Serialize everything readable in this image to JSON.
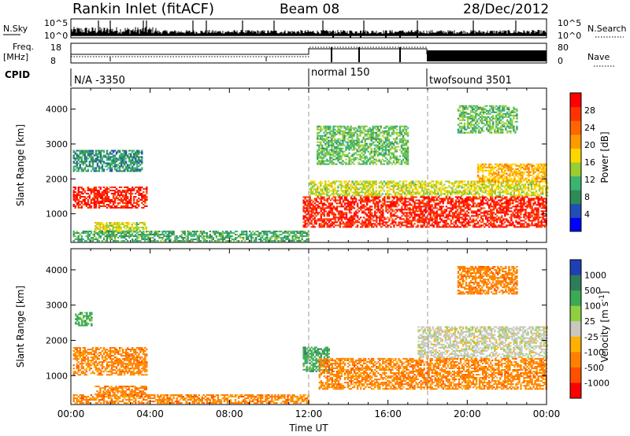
{
  "header": {
    "title": "Rankin Inlet (fitACF)",
    "beam": "Beam 08",
    "date": "28/Dec/2012"
  },
  "top_panels": {
    "nsky_label": "N.Sky",
    "nsky_ticks": [
      "10^5",
      "10^0"
    ],
    "nsearch_label": "N.Search",
    "freq_label": "Freq.",
    "freq_unit": "[MHz]",
    "freq_ticks": [
      "18",
      "8"
    ],
    "nave_ticks": [
      "80",
      "0"
    ],
    "nave_label": "Nave",
    "cpid_label": "CPID",
    "cpid_entries": [
      {
        "label": "N/A -3350",
        "start_hour": 0,
        "end_hour": 12
      },
      {
        "label": "normal 150",
        "start_hour": 12,
        "end_hour": 18
      },
      {
        "label": "twofsound 3501",
        "start_hour": 18,
        "end_hour": 24
      }
    ]
  },
  "colors": {
    "power_scale": [
      "#0000ff",
      "#1f4fb4",
      "#2e8b57",
      "#3cb371",
      "#9acd32",
      "#ffd700",
      "#ff9900",
      "#ff6600",
      "#ff3300",
      "#ff0000"
    ],
    "velocity_scale": [
      "#1f3fb4",
      "#2e7d5a",
      "#3aaa55",
      "#8fd040",
      "#c8c8c0",
      "#ffb000",
      "#ff8000",
      "#ff5000",
      "#ff0000"
    ]
  },
  "chart_data": [
    {
      "type": "heatmap",
      "name": "power",
      "xlabel": "",
      "ylabel": "Slant Range [km]",
      "xlim": [
        "00:00",
        "24:00"
      ],
      "ylim": [
        180,
        4600
      ],
      "yticks": [
        1000,
        2000,
        3000,
        4000
      ],
      "colorbar": {
        "label": "Power [dB]",
        "ticks": [
          4,
          8,
          12,
          16,
          20,
          24,
          28
        ],
        "range": [
          0,
          32
        ]
      },
      "markers_hours": [
        12,
        18
      ],
      "regions": [
        {
          "t0": 0.1,
          "t1": 3.8,
          "r0": 1150,
          "r1": 1750,
          "db": 30
        },
        {
          "t0": 0.1,
          "t1": 3.6,
          "r0": 2200,
          "r1": 2800,
          "db": 8
        },
        {
          "t0": 1.2,
          "t1": 3.8,
          "r0": 450,
          "r1": 750,
          "db": 16
        },
        {
          "t0": 0.1,
          "t1": 12.0,
          "r0": 200,
          "r1": 500,
          "db": 10
        },
        {
          "t0": 11.7,
          "t1": 24.0,
          "r0": 600,
          "r1": 1500,
          "db": 30
        },
        {
          "t0": 12.0,
          "t1": 24.0,
          "r0": 1500,
          "r1": 1950,
          "db": 16
        },
        {
          "t0": 20.5,
          "t1": 24.0,
          "r0": 1900,
          "r1": 2400,
          "db": 20
        },
        {
          "t0": 19.5,
          "t1": 22.5,
          "r0": 3300,
          "r1": 4100,
          "db": 12
        },
        {
          "t0": 12.4,
          "t1": 17.0,
          "r0": 2400,
          "r1": 3500,
          "db": 12
        }
      ]
    },
    {
      "type": "heatmap",
      "name": "velocity",
      "xlabel": "Time UT",
      "ylabel": "Slant Range [km]",
      "xlim": [
        "00:00",
        "24:00"
      ],
      "ylim": [
        180,
        4600
      ],
      "xticks": [
        "00:00",
        "04:00",
        "08:00",
        "12:00",
        "16:00",
        "20:00",
        "00:00"
      ],
      "yticks": [
        1000,
        2000,
        3000,
        4000
      ],
      "colorbar": {
        "label": "Velocity [m s^-1]",
        "ticks": [
          "1000",
          "500",
          "100",
          "25",
          "-25",
          "-100",
          "-500",
          "-1000"
        ]
      },
      "markers_hours": [
        12,
        18
      ],
      "regions": [
        {
          "t0": 0.1,
          "t1": 3.8,
          "r0": 1000,
          "r1": 1800,
          "v": -150
        },
        {
          "t0": 0.2,
          "t1": 1.0,
          "r0": 2400,
          "r1": 2800,
          "v": 80
        },
        {
          "t0": 1.2,
          "t1": 3.8,
          "r0": 400,
          "r1": 700,
          "v": -200
        },
        {
          "t0": 0.1,
          "t1": 12.0,
          "r0": 200,
          "r1": 450,
          "v": -120
        },
        {
          "t0": 11.7,
          "t1": 13.0,
          "r0": 1100,
          "r1": 1800,
          "v": 200
        },
        {
          "t0": 12.5,
          "t1": 24.0,
          "r0": 600,
          "r1": 1500,
          "v": -200
        },
        {
          "t0": 17.5,
          "t1": 24.0,
          "r0": 1500,
          "r1": 2400,
          "v": 0
        },
        {
          "t0": 19.5,
          "t1": 22.5,
          "r0": 3300,
          "r1": 4100,
          "v": -250
        }
      ]
    }
  ]
}
